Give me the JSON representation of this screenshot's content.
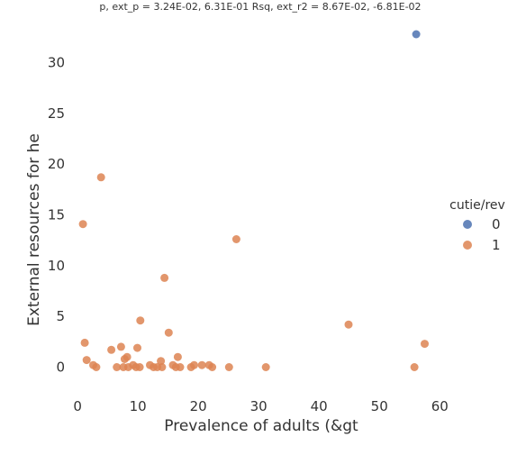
{
  "chart_data": {
    "type": "scatter",
    "title": "p, ext_p = 3.24E-02, 6.31E-01 Rsq, ext_r2 = 8.67E-02, -6.81E-02",
    "xlabel": "Prevalence of adults (&gt",
    "ylabel": "External resources for he",
    "xlim": [
      -2.7,
      62.5
    ],
    "ylim": [
      -2.0,
      34.4
    ],
    "xticks": [
      0,
      10,
      20,
      30,
      40,
      50,
      60
    ],
    "yticks": [
      0,
      5,
      10,
      15,
      20,
      25,
      30
    ],
    "x_tick_labels": [
      "0",
      "10",
      "20",
      "30",
      "40",
      "50",
      "60"
    ],
    "y_tick_labels": [
      "0",
      "5",
      "10",
      "15",
      "20",
      "25",
      "30"
    ],
    "grid": false,
    "legend": {
      "title": "cutie/rev",
      "placement": "right",
      "entries": [
        {
          "label": "0",
          "color": "#4c72b0"
        },
        {
          "label": "1",
          "color": "#dd8452"
        }
      ]
    },
    "series": [
      {
        "name": "0",
        "color": "#4c72b0",
        "points": [
          [
            56.1,
            32.8
          ]
        ]
      },
      {
        "name": "1",
        "color": "#dd8452",
        "points": [
          [
            0.9,
            14.1
          ],
          [
            3.9,
            18.7
          ],
          [
            26.3,
            12.6
          ],
          [
            14.4,
            8.8
          ],
          [
            10.4,
            4.6
          ],
          [
            15.1,
            3.4
          ],
          [
            44.9,
            4.2
          ],
          [
            57.5,
            2.3
          ],
          [
            1.2,
            2.4
          ],
          [
            7.2,
            2.0
          ],
          [
            9.9,
            1.9
          ],
          [
            5.6,
            1.7
          ],
          [
            8.2,
            1.0
          ],
          [
            16.6,
            1.0
          ],
          [
            7.8,
            0.8
          ],
          [
            1.5,
            0.7
          ],
          [
            13.8,
            0.6
          ],
          [
            2.6,
            0.2
          ],
          [
            3.1,
            0.0
          ],
          [
            6.5,
            0.0
          ],
          [
            7.6,
            0.0
          ],
          [
            8.4,
            0.0
          ],
          [
            9.2,
            0.2
          ],
          [
            9.7,
            0.0
          ],
          [
            10.3,
            0.0
          ],
          [
            12.0,
            0.2
          ],
          [
            12.6,
            0.0
          ],
          [
            13.2,
            0.0
          ],
          [
            14.0,
            0.0
          ],
          [
            15.8,
            0.2
          ],
          [
            16.3,
            0.0
          ],
          [
            17.0,
            0.0
          ],
          [
            18.8,
            0.0
          ],
          [
            19.3,
            0.2
          ],
          [
            20.6,
            0.2
          ],
          [
            21.8,
            0.2
          ],
          [
            22.3,
            0.0
          ],
          [
            25.1,
            0.0
          ],
          [
            31.2,
            0.0
          ],
          [
            55.8,
            0.0
          ]
        ]
      }
    ]
  }
}
